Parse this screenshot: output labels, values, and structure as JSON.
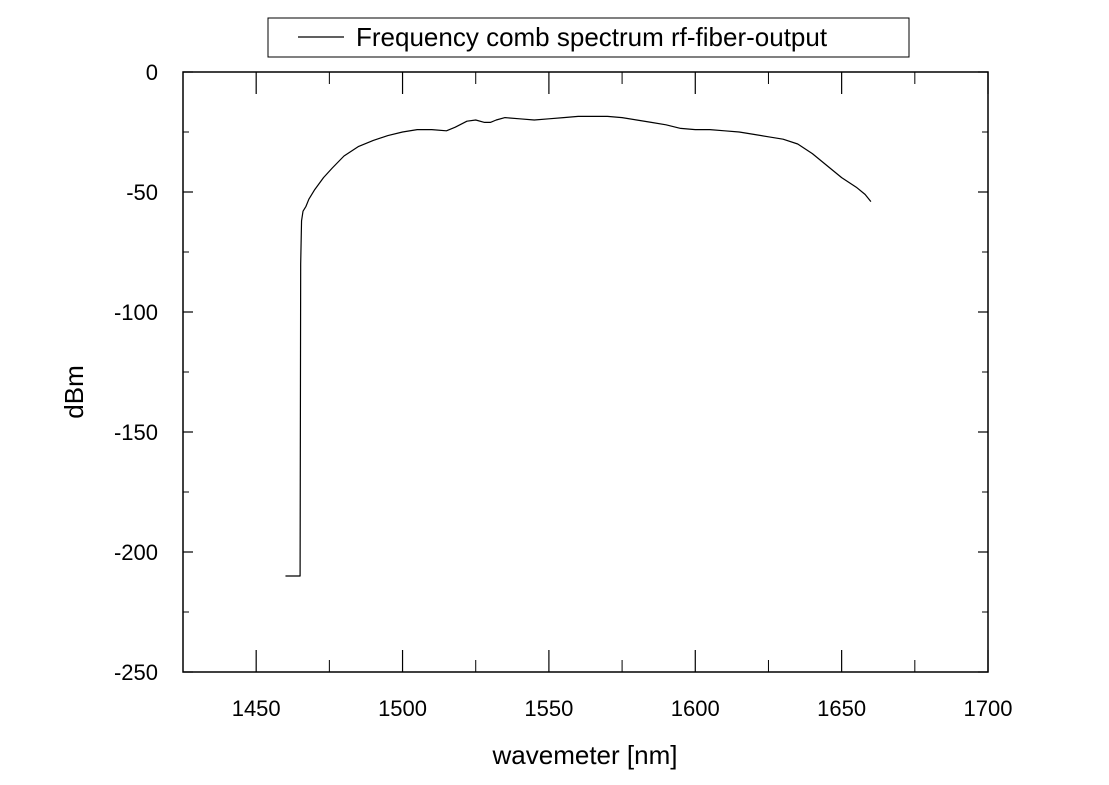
{
  "chart_data": {
    "type": "line",
    "title": "",
    "xlabel": "wavemeter [nm]",
    "ylabel": "dBm",
    "xlim": [
      1425,
      1700
    ],
    "ylim": [
      -250,
      0
    ],
    "xticks": [
      1450,
      1500,
      1550,
      1600,
      1650,
      1700
    ],
    "yticks": [
      0,
      -50,
      -100,
      -150,
      -200,
      -250
    ],
    "grid": false,
    "legend_position": "top",
    "series": [
      {
        "name": "Frequency comb spectrum rf-fiber-output",
        "color": "#000000",
        "x": [
          1460,
          1465,
          1465.2,
          1465.5,
          1466,
          1466.5,
          1467,
          1468,
          1470,
          1473,
          1476,
          1480,
          1485,
          1490,
          1495,
          1500,
          1505,
          1510,
          1515,
          1518,
          1522,
          1525,
          1528,
          1530,
          1532,
          1535,
          1540,
          1545,
          1550,
          1555,
          1560,
          1565,
          1570,
          1575,
          1580,
          1585,
          1590,
          1595,
          1600,
          1605,
          1610,
          1615,
          1620,
          1625,
          1630,
          1635,
          1640,
          1645,
          1650,
          1655,
          1658,
          1660
        ],
        "y": [
          -210,
          -210,
          -80,
          -62,
          -58,
          -57,
          -56,
          -53,
          -49,
          -44,
          -40,
          -35,
          -31,
          -28.5,
          -26.5,
          -25,
          -24,
          -24,
          -24.5,
          -23,
          -20.5,
          -20,
          -21,
          -21,
          -20,
          -19,
          -19.5,
          -20,
          -19.5,
          -19,
          -18.5,
          -18.5,
          -18.5,
          -19,
          -20,
          -21,
          -22,
          -23.5,
          -24,
          -24,
          -24.5,
          -25,
          -26,
          -27,
          -28,
          -30,
          -34,
          -39,
          -44,
          -48,
          -51,
          -54
        ]
      }
    ]
  }
}
